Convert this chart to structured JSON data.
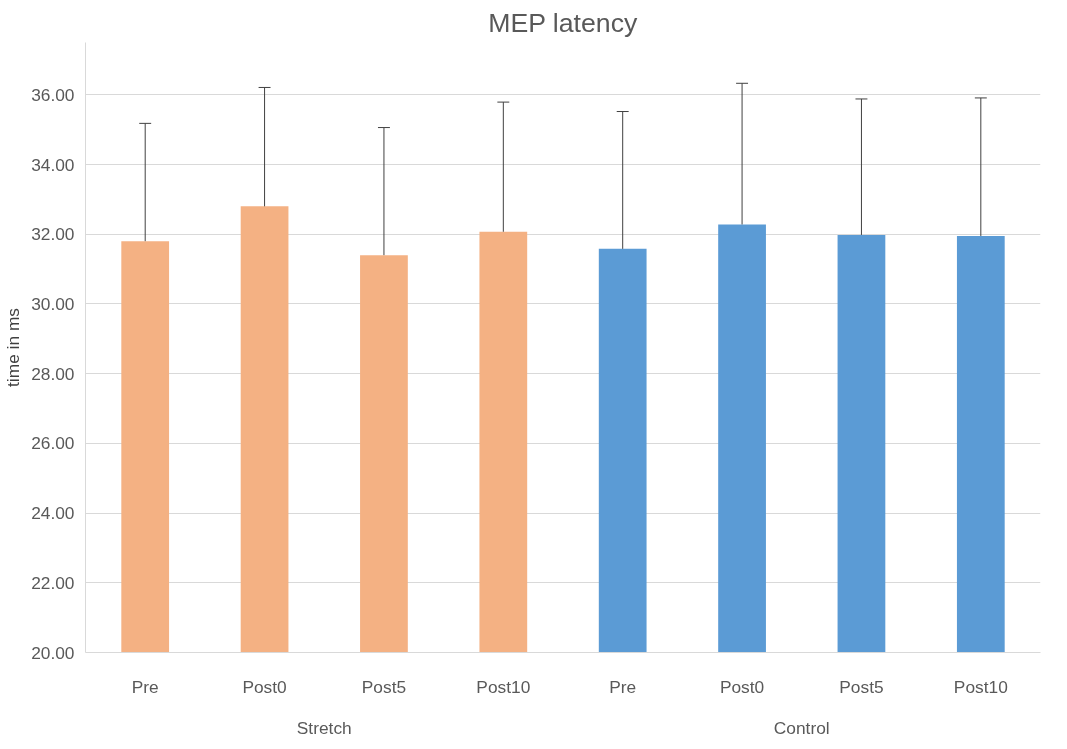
{
  "chart_data": {
    "type": "bar",
    "title": "MEP latency",
    "ylabel": "time in ms",
    "categories": [
      "Pre",
      "Post0",
      "Post5",
      "Post10",
      "Pre",
      "Post0",
      "Post5",
      "Post10"
    ],
    "series": [
      {
        "color": "#f4b183",
        "values": [
          31.8,
          32.8,
          31.4,
          32.07,
          null,
          null,
          null,
          null
        ],
        "errors": [
          [
            31.8,
            35.18
          ],
          [
            32.8,
            36.21
          ],
          [
            31.4,
            35.06
          ],
          [
            32.07,
            35.79
          ],
          null,
          null,
          null,
          null
        ]
      },
      {
        "color": "#5b9bd5",
        "values": [
          null,
          null,
          null,
          null,
          31.58,
          32.28,
          31.98,
          31.95
        ],
        "errors": [
          null,
          null,
          null,
          null,
          [
            31.58,
            35.52
          ],
          [
            32.28,
            36.33
          ],
          [
            31.98,
            35.88
          ],
          [
            31.95,
            35.91
          ]
        ]
      }
    ],
    "ylim": [
      20,
      37.5
    ],
    "yticks": [
      {
        "value": 20,
        "label": "20.00"
      },
      {
        "value": 22,
        "label": "22.00"
      },
      {
        "value": 24,
        "label": "24.00"
      },
      {
        "value": 26,
        "label": "26.00"
      },
      {
        "value": 28,
        "label": "28.00"
      },
      {
        "value": 30,
        "label": "30.00"
      },
      {
        "value": 32,
        "label": "32.00"
      },
      {
        "value": 34,
        "label": "34.00"
      },
      {
        "value": 36,
        "label": "36.00"
      }
    ],
    "annotations": [
      "Stretch",
      "Control"
    ],
    "grid": "y"
  }
}
